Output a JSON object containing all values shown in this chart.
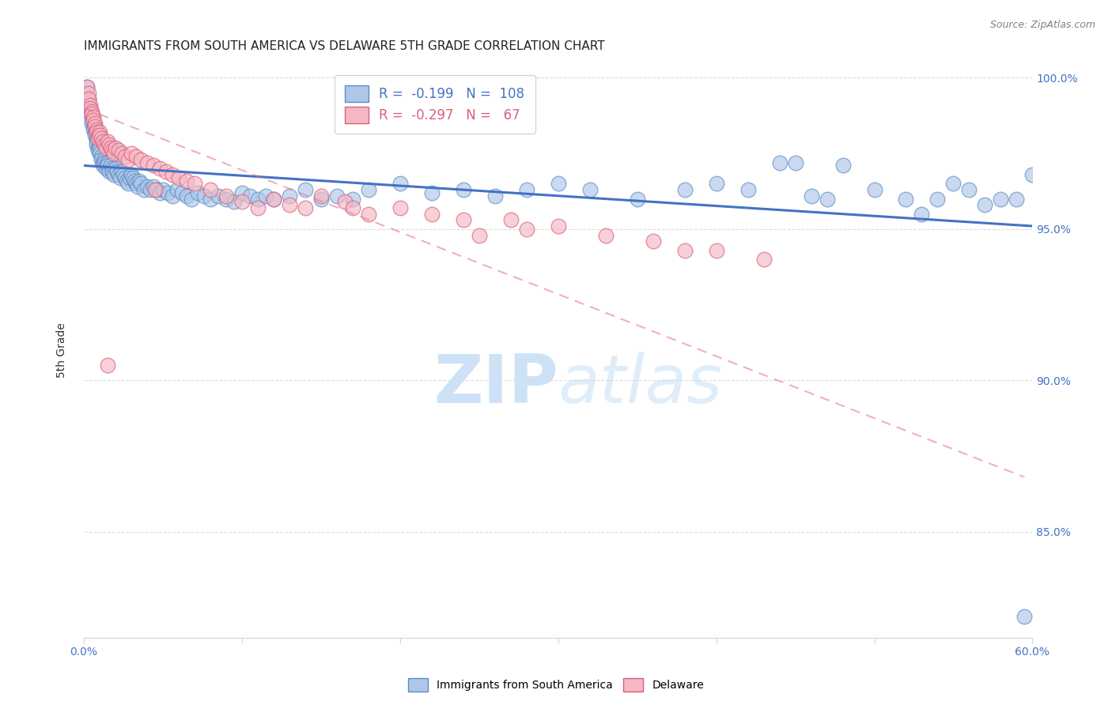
{
  "title": "IMMIGRANTS FROM SOUTH AMERICA VS DELAWARE 5TH GRADE CORRELATION CHART",
  "source": "Source: ZipAtlas.com",
  "ylabel": "5th Grade",
  "xlim": [
    0.0,
    0.6
  ],
  "ylim": [
    0.815,
    1.005
  ],
  "xtick_vals": [
    0.0,
    0.1,
    0.2,
    0.3,
    0.4,
    0.5,
    0.6
  ],
  "ytick_vals": [
    0.85,
    0.9,
    0.95,
    1.0
  ],
  "ytick_labels": [
    "85.0%",
    "90.0%",
    "95.0%",
    "100.0%"
  ],
  "blue_R": "-0.199",
  "blue_N": "108",
  "pink_R": "-0.297",
  "pink_N": "67",
  "blue_fill": "#aec6e8",
  "pink_fill": "#f5b8c4",
  "blue_edge": "#5b8ec4",
  "pink_edge": "#d9607a",
  "blue_line": "#4472c4",
  "pink_line": "#e07090",
  "right_tick_color": "#4472c4",
  "watermark_color": "#c8dff5",
  "blue_scatter_x": [
    0.002,
    0.003,
    0.004,
    0.004,
    0.005,
    0.005,
    0.006,
    0.006,
    0.007,
    0.007,
    0.008,
    0.008,
    0.008,
    0.009,
    0.009,
    0.01,
    0.01,
    0.01,
    0.011,
    0.011,
    0.012,
    0.012,
    0.013,
    0.013,
    0.014,
    0.014,
    0.015,
    0.015,
    0.016,
    0.016,
    0.017,
    0.018,
    0.018,
    0.019,
    0.02,
    0.021,
    0.022,
    0.023,
    0.024,
    0.025,
    0.026,
    0.027,
    0.028,
    0.029,
    0.03,
    0.031,
    0.032,
    0.033,
    0.034,
    0.035,
    0.036,
    0.038,
    0.04,
    0.042,
    0.044,
    0.046,
    0.048,
    0.05,
    0.053,
    0.056,
    0.059,
    0.062,
    0.065,
    0.068,
    0.072,
    0.076,
    0.08,
    0.085,
    0.09,
    0.095,
    0.1,
    0.105,
    0.11,
    0.115,
    0.12,
    0.13,
    0.14,
    0.15,
    0.16,
    0.17,
    0.18,
    0.2,
    0.22,
    0.24,
    0.26,
    0.28,
    0.3,
    0.32,
    0.35,
    0.38,
    0.4,
    0.42,
    0.45,
    0.48,
    0.5,
    0.52,
    0.55,
    0.57,
    0.59,
    0.6,
    0.44,
    0.46,
    0.47,
    0.53,
    0.54,
    0.56,
    0.58,
    0.595
  ],
  "blue_scatter_y": [
    0.997,
    0.993,
    0.99,
    0.988,
    0.986,
    0.985,
    0.984,
    0.983,
    0.982,
    0.981,
    0.98,
    0.979,
    0.978,
    0.977,
    0.976,
    0.978,
    0.977,
    0.975,
    0.974,
    0.973,
    0.972,
    0.971,
    0.973,
    0.972,
    0.971,
    0.97,
    0.972,
    0.971,
    0.97,
    0.969,
    0.971,
    0.97,
    0.969,
    0.968,
    0.97,
    0.969,
    0.968,
    0.967,
    0.969,
    0.968,
    0.967,
    0.966,
    0.965,
    0.967,
    0.968,
    0.967,
    0.966,
    0.965,
    0.964,
    0.966,
    0.965,
    0.963,
    0.964,
    0.963,
    0.964,
    0.963,
    0.962,
    0.963,
    0.962,
    0.961,
    0.963,
    0.962,
    0.961,
    0.96,
    0.962,
    0.961,
    0.96,
    0.961,
    0.96,
    0.959,
    0.962,
    0.961,
    0.96,
    0.961,
    0.96,
    0.961,
    0.963,
    0.96,
    0.961,
    0.96,
    0.963,
    0.965,
    0.962,
    0.963,
    0.961,
    0.963,
    0.965,
    0.963,
    0.96,
    0.963,
    0.965,
    0.963,
    0.972,
    0.971,
    0.963,
    0.96,
    0.965,
    0.958,
    0.96,
    0.968,
    0.972,
    0.961,
    0.96,
    0.955,
    0.96,
    0.963,
    0.96,
    0.822
  ],
  "pink_scatter_x": [
    0.002,
    0.003,
    0.003,
    0.004,
    0.004,
    0.005,
    0.005,
    0.006,
    0.006,
    0.007,
    0.007,
    0.008,
    0.008,
    0.009,
    0.009,
    0.01,
    0.01,
    0.011,
    0.012,
    0.013,
    0.014,
    0.015,
    0.016,
    0.017,
    0.018,
    0.019,
    0.02,
    0.022,
    0.024,
    0.026,
    0.028,
    0.03,
    0.033,
    0.036,
    0.04,
    0.044,
    0.048,
    0.052,
    0.056,
    0.06,
    0.065,
    0.07,
    0.08,
    0.09,
    0.1,
    0.11,
    0.12,
    0.13,
    0.14,
    0.15,
    0.165,
    0.18,
    0.2,
    0.22,
    0.24,
    0.27,
    0.3,
    0.33,
    0.36,
    0.4,
    0.43,
    0.045,
    0.38,
    0.17,
    0.25,
    0.28,
    0.015
  ],
  "pink_scatter_y": [
    0.997,
    0.995,
    0.993,
    0.991,
    0.99,
    0.989,
    0.988,
    0.987,
    0.986,
    0.985,
    0.984,
    0.983,
    0.982,
    0.981,
    0.98,
    0.982,
    0.981,
    0.98,
    0.979,
    0.978,
    0.977,
    0.979,
    0.978,
    0.977,
    0.976,
    0.975,
    0.977,
    0.976,
    0.975,
    0.974,
    0.973,
    0.975,
    0.974,
    0.973,
    0.972,
    0.971,
    0.97,
    0.969,
    0.968,
    0.967,
    0.966,
    0.965,
    0.963,
    0.961,
    0.959,
    0.957,
    0.96,
    0.958,
    0.957,
    0.961,
    0.959,
    0.955,
    0.957,
    0.955,
    0.953,
    0.953,
    0.951,
    0.948,
    0.946,
    0.943,
    0.94,
    0.963,
    0.943,
    0.957,
    0.948,
    0.95,
    0.905
  ],
  "blue_trend_x": [
    0.0,
    0.6
  ],
  "blue_trend_y": [
    0.971,
    0.951
  ],
  "pink_trend_x": [
    0.0,
    0.595
  ],
  "pink_trend_y": [
    0.99,
    0.868
  ],
  "title_fontsize": 11,
  "tick_fontsize": 10,
  "axis_label_fontsize": 10
}
